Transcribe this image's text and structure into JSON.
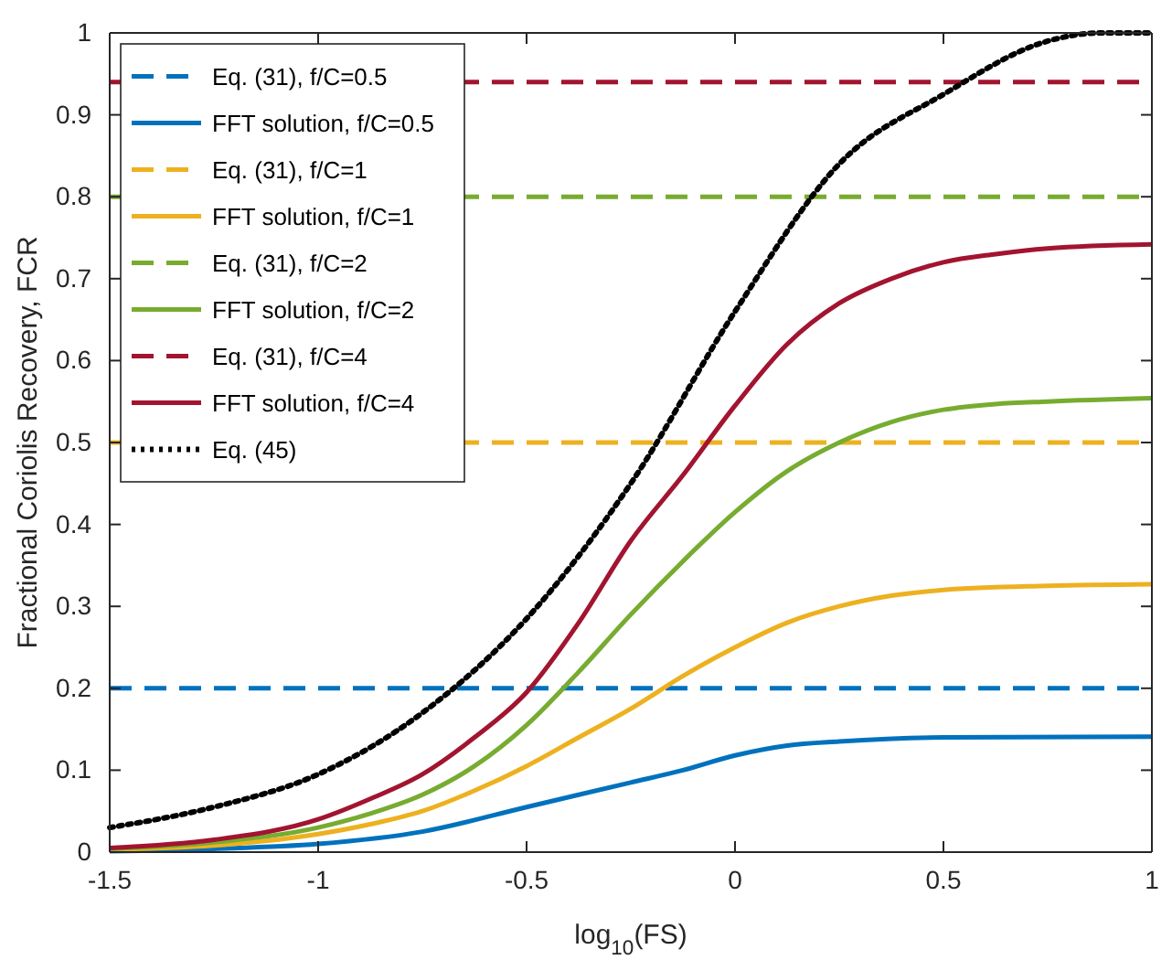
{
  "chart_data": {
    "type": "line",
    "xlabel": "log$_{10}$(FS)",
    "ylabel": "Fractional Coriolis Recovery, FCR",
    "xlim": [
      -1.5,
      1
    ],
    "ylim": [
      0,
      1
    ],
    "xticks": [
      -1.5,
      -1,
      -0.5,
      0,
      0.5,
      1
    ],
    "yticks": [
      0,
      0.1,
      0.2,
      0.3,
      0.4,
      0.5,
      0.6,
      0.7,
      0.8,
      0.9,
      1
    ],
    "grid": false,
    "legend": "top left",
    "marker": "none",
    "series": [
      {
        "name": "Eq. (31), f/C=0.5",
        "color": "#0072bd",
        "line_style": "dashed",
        "x": [
          -1.5,
          1
        ],
        "values": [
          0.2,
          0.2
        ]
      },
      {
        "name": "FFT solution, f/C=0.5",
        "color": "#0072bd",
        "line_style": "solid",
        "x": [
          -1.5,
          -1.25,
          -1,
          -0.75,
          -0.5,
          -0.375,
          -0.25,
          -0.125,
          0,
          0.125,
          0.25,
          0.5,
          1
        ],
        "values": [
          0.001,
          0.004,
          0.01,
          0.025,
          0.055,
          0.07,
          0.085,
          0.1,
          0.118,
          0.13,
          0.135,
          0.14,
          0.141
        ]
      },
      {
        "name": "Eq. (31), f/C=1",
        "color": "#edb120",
        "line_style": "dashed",
        "x": [
          -1.5,
          1
        ],
        "values": [
          0.5,
          0.5
        ]
      },
      {
        "name": "FFT solution, f/C=1",
        "color": "#edb120",
        "line_style": "solid",
        "x": [
          -1.5,
          -1.25,
          -1,
          -0.875,
          -0.75,
          -0.625,
          -0.5,
          -0.375,
          -0.25,
          -0.125,
          0,
          0.125,
          0.25,
          0.375,
          0.5,
          0.75,
          1
        ],
        "values": [
          0.003,
          0.008,
          0.022,
          0.034,
          0.05,
          0.075,
          0.105,
          0.14,
          0.175,
          0.215,
          0.25,
          0.28,
          0.3,
          0.313,
          0.32,
          0.325,
          0.327
        ]
      },
      {
        "name": "Eq. (31), f/C=2",
        "color": "#77ac30",
        "line_style": "dashed",
        "x": [
          -1.5,
          1
        ],
        "values": [
          0.8,
          0.8
        ]
      },
      {
        "name": "FFT solution, f/C=2",
        "color": "#77ac30",
        "line_style": "solid",
        "x": [
          -1.5,
          -1.25,
          -1,
          -0.875,
          -0.75,
          -0.625,
          -0.5,
          -0.375,
          -0.25,
          -0.125,
          0,
          0.125,
          0.25,
          0.375,
          0.5,
          0.625,
          0.75,
          1
        ],
        "values": [
          0.004,
          0.012,
          0.03,
          0.047,
          0.07,
          0.105,
          0.155,
          0.22,
          0.29,
          0.355,
          0.415,
          0.465,
          0.5,
          0.525,
          0.54,
          0.547,
          0.55,
          0.554
        ]
      },
      {
        "name": "Eq. (31), f/C=4",
        "color": "#a2142f",
        "line_style": "dashed",
        "x": [
          -1.5,
          1
        ],
        "values": [
          0.94,
          0.94
        ]
      },
      {
        "name": "FFT solution, f/C=4",
        "color": "#a2142f",
        "line_style": "solid",
        "x": [
          -1.5,
          -1.25,
          -1,
          -0.875,
          -0.75,
          -0.625,
          -0.5,
          -0.375,
          -0.25,
          -0.125,
          0,
          0.125,
          0.25,
          0.375,
          0.5,
          0.625,
          0.75,
          1
        ],
        "values": [
          0.005,
          0.015,
          0.04,
          0.065,
          0.095,
          0.14,
          0.195,
          0.28,
          0.38,
          0.46,
          0.545,
          0.62,
          0.67,
          0.7,
          0.72,
          0.73,
          0.737,
          0.742
        ]
      },
      {
        "name": "Eq. (45)",
        "color": "#000000",
        "line_style": "dotted",
        "x": [
          -1.5,
          -1.25,
          -1,
          -0.75,
          -0.5,
          -0.25,
          0,
          0.25,
          0.5,
          0.75,
          0.875,
          1
        ],
        "values": [
          0.03,
          0.055,
          0.095,
          0.17,
          0.285,
          0.45,
          0.66,
          0.84,
          0.925,
          0.99,
          1,
          1
        ]
      }
    ]
  }
}
